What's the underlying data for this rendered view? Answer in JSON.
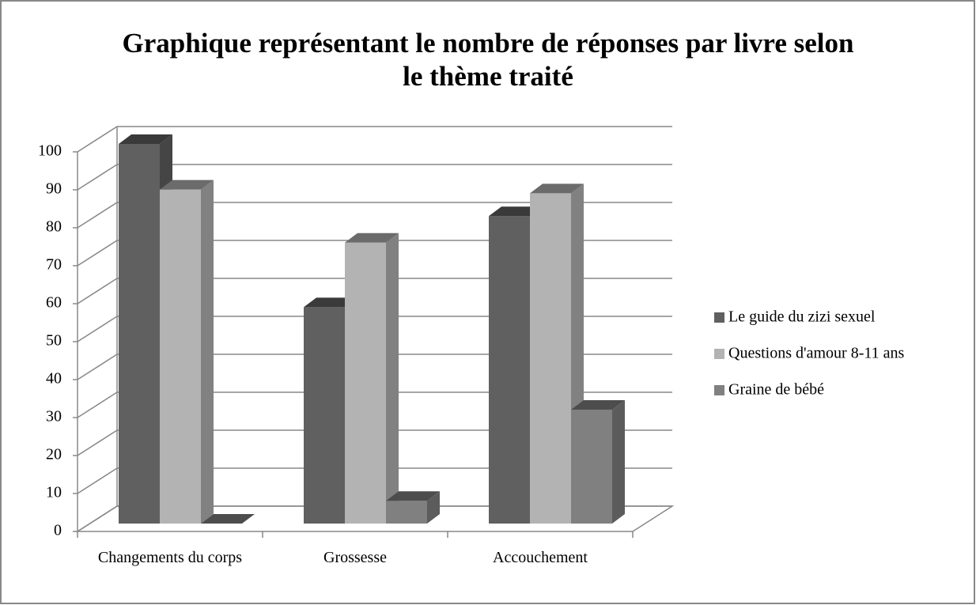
{
  "chart_data": {
    "type": "bar3d",
    "title": "Graphique représentant le nombre de réponses par livre selon le thème traité",
    "categories": [
      "Changements du corps",
      "Grossesse",
      "Accouchement"
    ],
    "series": [
      {
        "name": "Le guide du zizi sexuel",
        "color": "#606060",
        "values": [
          100,
          57,
          81
        ]
      },
      {
        "name": "Questions d'amour 8-11 ans",
        "color": "#b3b3b3",
        "values": [
          88,
          74,
          87
        ]
      },
      {
        "name": "Graine de bébé",
        "color": "#808080",
        "values": [
          0,
          6,
          30
        ]
      }
    ],
    "ylim": [
      0,
      100
    ],
    "yticks": [
      0,
      10,
      20,
      30,
      40,
      50,
      60,
      70,
      80,
      90,
      100
    ],
    "grid": true,
    "legend": "right"
  }
}
